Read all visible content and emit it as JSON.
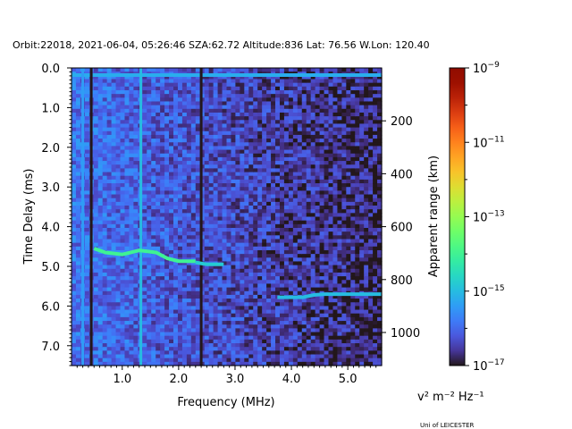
{
  "chart_data": {
    "type": "heatmap",
    "title": "Orbit:22018, 2021-06-04, 05:26:46 SZA:62.72 Altitude:836 Lat: 76.56 W.Lon: 120.40",
    "xlabel": "Frequency (MHz)",
    "ylabel": "Time Delay (ms)",
    "y2label": "Apparent range (km)",
    "xlim": [
      0.1,
      5.6
    ],
    "ylim": [
      7.5,
      0.0
    ],
    "y2lim": [
      1125,
      0
    ],
    "x_ticks": [
      "1.0",
      "2.0",
      "3.0",
      "4.0",
      "5.0"
    ],
    "y_ticks": [
      "0.0",
      "1.0",
      "2.0",
      "3.0",
      "4.0",
      "5.0",
      "6.0",
      "7.0"
    ],
    "y2_ticks": [
      "200",
      "400",
      "600",
      "800",
      "1000"
    ],
    "colorbar": {
      "label": "v² m⁻² Hz⁻¹",
      "scale": "log",
      "min": 1e-17,
      "max": 1e-09,
      "colormap": "turbo",
      "tick_labels": [
        {
          "value": 1e-09,
          "base": "10",
          "exp": "−9"
        },
        {
          "value": 1e-11,
          "base": "10",
          "exp": "−11"
        },
        {
          "value": 1e-13,
          "base": "10",
          "exp": "−13"
        },
        {
          "value": 1e-15,
          "base": "10",
          "exp": "−15"
        },
        {
          "value": 1e-17,
          "base": "10",
          "exp": "−17"
        }
      ]
    },
    "features": [
      {
        "kind": "surface-echo",
        "x": [
          0.1,
          5.6
        ],
        "y": [
          0.18,
          0.18
        ],
        "log_intensity": -15.2
      },
      {
        "kind": "vertical-line",
        "x": [
          0.3,
          0.3
        ],
        "y": [
          0.0,
          7.5
        ],
        "log_intensity": -15.4
      },
      {
        "kind": "vertical-line",
        "x": [
          0.45,
          0.45
        ],
        "y": [
          0.0,
          7.5
        ],
        "log_intensity": -17.0
      },
      {
        "kind": "vertical-line",
        "x": [
          1.33,
          1.33
        ],
        "y": [
          0.0,
          7.5
        ],
        "log_intensity": -15.0
      },
      {
        "kind": "vertical-line",
        "x": [
          2.4,
          2.4
        ],
        "y": [
          0.0,
          7.5
        ],
        "log_intensity": -17.0
      },
      {
        "kind": "trace",
        "x": [
          0.5,
          0.7,
          1.0,
          1.3,
          1.6,
          1.8,
          2.0,
          2.3
        ],
        "y": [
          4.55,
          4.65,
          4.7,
          4.6,
          4.65,
          4.8,
          4.87,
          4.87
        ],
        "log_intensity": -14.0
      },
      {
        "kind": "trace",
        "x": [
          2.3,
          2.5,
          2.8
        ],
        "y": [
          4.9,
          4.95,
          4.95
        ],
        "log_intensity": -14.8
      },
      {
        "kind": "trace",
        "x": [
          3.75,
          4.2,
          4.4,
          4.6,
          5.0,
          5.6
        ],
        "y": [
          5.78,
          5.78,
          5.72,
          5.7,
          5.7,
          5.7
        ],
        "log_intensity": -15.0
      }
    ],
    "grid": false,
    "legend": "none"
  },
  "credit": "Uni of LEICESTER"
}
